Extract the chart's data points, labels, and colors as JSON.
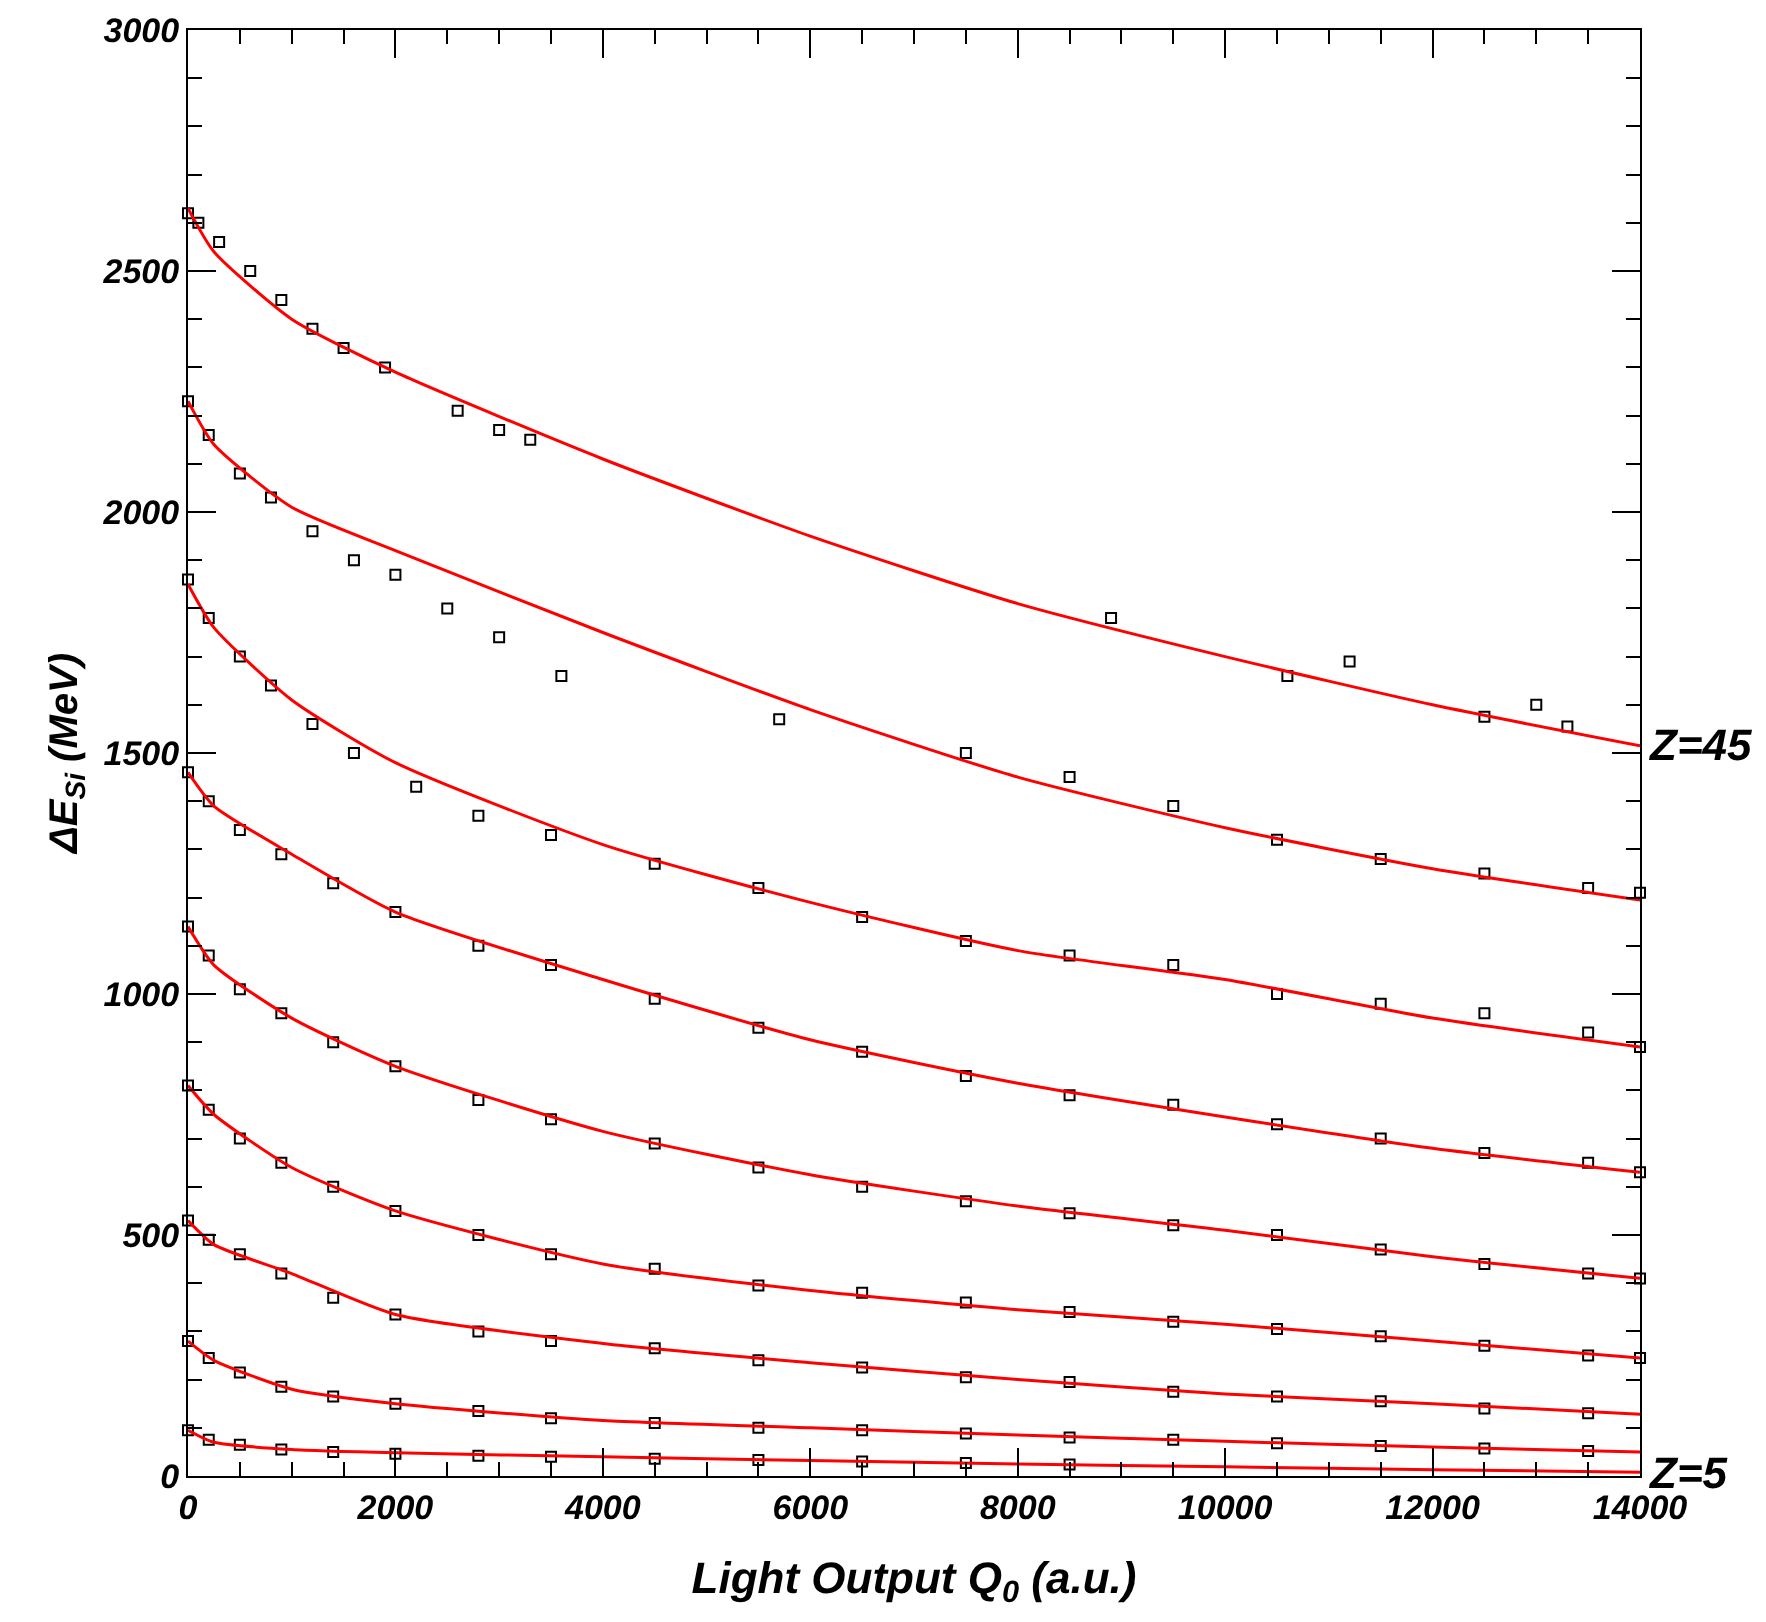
{
  "chart_data": {
    "type": "scatter",
    "xlabel": "Light Output Q$_{0}$ (a.u.)",
    "ylabel": "ΔE$_{Si}$ (MeV)",
    "xlim": [
      0,
      14000
    ],
    "xticks": [
      0,
      2000,
      4000,
      6000,
      8000,
      10000,
      12000,
      14000
    ],
    "ylim": [
      0,
      3000
    ],
    "yticks": [
      0,
      500,
      1000,
      1500,
      2000,
      2500,
      3000
    ],
    "grid": false,
    "legend": false,
    "marker": "square",
    "line_style": "solid",
    "annotations": [
      {
        "text": "Z=45",
        "x": 14000,
        "y": 1515
      },
      {
        "text": "Z=5",
        "x": 14000,
        "y": 8
      }
    ],
    "series": [
      {
        "color": "#000000",
        "x": [
          0,
          100,
          300,
          600,
          900,
          1200,
          1500,
          1900,
          2600,
          3000,
          3300,
          8900,
          10600,
          11200,
          12500,
          13000,
          13300
        ],
        "values": [
          2620,
          2600,
          2560,
          2500,
          2440,
          2380,
          2340,
          2300,
          2210,
          2170,
          2150,
          1780,
          1660,
          1690,
          1575,
          1600,
          1555
        ]
      },
      {
        "color": "#000000",
        "x": [
          0,
          200,
          500,
          800,
          1200,
          1600,
          2000,
          2500,
          3000,
          3600,
          5700,
          7500,
          8500,
          9500,
          10500,
          11500,
          12500,
          13500,
          14000
        ],
        "values": [
          2230,
          2160,
          2080,
          2030,
          1960,
          1900,
          1870,
          1800,
          1740,
          1660,
          1570,
          1500,
          1450,
          1390,
          1320,
          1280,
          1250,
          1220,
          1210
        ]
      },
      {
        "color": "#000000",
        "x": [
          0,
          200,
          500,
          800,
          1200,
          1600,
          2200,
          2800,
          3500,
          4500,
          5500,
          6500,
          7500,
          8500,
          9500,
          10500,
          11500,
          12500,
          13500,
          14000
        ],
        "values": [
          1860,
          1780,
          1700,
          1640,
          1560,
          1500,
          1430,
          1370,
          1330,
          1270,
          1220,
          1160,
          1110,
          1080,
          1060,
          1000,
          980,
          960,
          920,
          890
        ]
      },
      {
        "color": "#000000",
        "x": [
          0,
          200,
          500,
          900,
          1400,
          2000,
          2800,
          3500,
          4500,
          5500,
          6500,
          7500,
          8500,
          9500,
          10500,
          11500,
          12500,
          13500,
          14000
        ],
        "values": [
          1460,
          1400,
          1340,
          1290,
          1230,
          1170,
          1100,
          1060,
          990,
          930,
          880,
          830,
          790,
          770,
          730,
          700,
          670,
          650,
          630
        ]
      },
      {
        "color": "#000000",
        "x": [
          0,
          200,
          500,
          900,
          1400,
          2000,
          2800,
          3500,
          4500,
          5500,
          6500,
          7500,
          8500,
          9500,
          10500,
          11500,
          12500,
          13500,
          14000
        ],
        "values": [
          1140,
          1080,
          1010,
          960,
          900,
          850,
          780,
          740,
          690,
          640,
          600,
          570,
          545,
          520,
          500,
          470,
          440,
          420,
          410
        ]
      },
      {
        "color": "#000000",
        "x": [
          0,
          200,
          500,
          900,
          1400,
          2000,
          2800,
          3500,
          4500,
          5500,
          6500,
          7500,
          8500,
          9500,
          10500,
          11500,
          12500,
          13500,
          14000
        ],
        "values": [
          810,
          760,
          700,
          650,
          600,
          550,
          500,
          460,
          430,
          395,
          380,
          360,
          340,
          320,
          305,
          290,
          270,
          250,
          245
        ]
      },
      {
        "color": "#000000",
        "x": [
          0,
          200,
          500,
          900,
          1400,
          2000,
          2800,
          3500,
          4500,
          5500,
          6500,
          7500,
          8500,
          9500,
          10500,
          11500,
          12500,
          13500
        ],
        "values": [
          530,
          490,
          460,
          420,
          370,
          335,
          300,
          280,
          265,
          240,
          225,
          205,
          195,
          175,
          165,
          155,
          140,
          130
        ]
      },
      {
        "color": "#000000",
        "x": [
          0,
          200,
          500,
          900,
          1400,
          2000,
          2800,
          3500,
          4500,
          5500,
          6500,
          7500,
          8500,
          9500,
          10500,
          11500,
          12500,
          13500
        ],
        "values": [
          280,
          245,
          215,
          185,
          165,
          150,
          135,
          120,
          110,
          100,
          95,
          88,
          80,
          75,
          68,
          62,
          57,
          52
        ]
      },
      {
        "color": "#000000",
        "x": [
          0,
          200,
          500,
          900,
          1400,
          2000,
          2800,
          3500,
          4500,
          5500,
          6500,
          7500,
          8500
        ],
        "values": [
          95,
          75,
          65,
          55,
          50,
          46,
          42,
          40,
          36,
          33,
          30,
          27,
          24
        ]
      },
      {
        "type": "line",
        "marker": "none",
        "color": "#ff0000",
        "x": [
          0,
          250,
          1000,
          2000,
          4000,
          6000,
          8000,
          10000,
          12000,
          14000
        ],
        "values": [
          2630,
          2540,
          2400,
          2290,
          2110,
          1950,
          1810,
          1700,
          1600,
          1515
        ]
      },
      {
        "type": "line",
        "marker": "none",
        "color": "#ff0000",
        "x": [
          0,
          250,
          1000,
          2000,
          4000,
          6000,
          8000,
          10000,
          12000,
          14000
        ],
        "values": [
          2230,
          2140,
          2010,
          1920,
          1750,
          1590,
          1450,
          1345,
          1260,
          1195
        ]
      },
      {
        "type": "line",
        "marker": "none",
        "color": "#ff0000",
        "x": [
          0,
          250,
          1000,
          2000,
          4000,
          6000,
          8000,
          10000,
          12000,
          14000
        ],
        "values": [
          1850,
          1760,
          1610,
          1480,
          1310,
          1190,
          1090,
          1030,
          950,
          890
        ]
      },
      {
        "type": "line",
        "marker": "none",
        "color": "#ff0000",
        "x": [
          0,
          250,
          1000,
          2000,
          4000,
          6000,
          8000,
          10000,
          12000,
          14000
        ],
        "values": [
          1460,
          1390,
          1290,
          1170,
          1030,
          905,
          815,
          745,
          680,
          630
        ]
      },
      {
        "type": "line",
        "marker": "none",
        "color": "#ff0000",
        "x": [
          0,
          250,
          1000,
          2000,
          4000,
          6000,
          8000,
          10000,
          12000,
          14000
        ],
        "values": [
          1140,
          1060,
          950,
          850,
          715,
          625,
          560,
          510,
          455,
          410
        ]
      },
      {
        "type": "line",
        "marker": "none",
        "color": "#ff0000",
        "x": [
          0,
          250,
          1000,
          2000,
          4000,
          6000,
          8000,
          10000,
          12000,
          14000
        ],
        "values": [
          810,
          750,
          640,
          550,
          440,
          385,
          345,
          315,
          280,
          245
        ]
      },
      {
        "type": "line",
        "marker": "none",
        "color": "#ff0000",
        "x": [
          0,
          250,
          1000,
          2000,
          4000,
          6000,
          8000,
          10000,
          12000,
          14000
        ],
        "values": [
          530,
          480,
          420,
          335,
          275,
          235,
          200,
          170,
          150,
          128
        ]
      },
      {
        "type": "line",
        "marker": "none",
        "color": "#ff0000",
        "x": [
          0,
          250,
          1000,
          2000,
          4000,
          6000,
          8000,
          10000,
          12000,
          14000
        ],
        "values": [
          280,
          240,
          180,
          150,
          115,
          100,
          85,
          72,
          60,
          50
        ]
      },
      {
        "type": "line",
        "marker": "none",
        "color": "#ff0000",
        "x": [
          0,
          250,
          1000,
          2000,
          4000,
          6000,
          8000,
          10000,
          12000,
          14000
        ],
        "values": [
          95,
          70,
          55,
          48,
          40,
          32,
          25,
          19,
          13,
          8
        ]
      }
    ]
  }
}
